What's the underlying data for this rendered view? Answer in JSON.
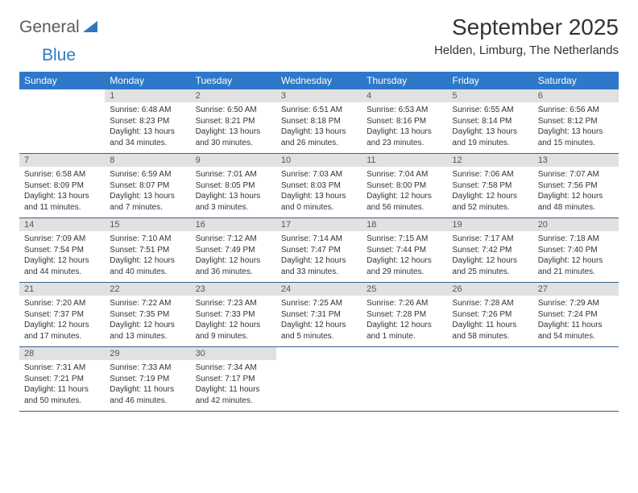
{
  "logo": {
    "text1": "General",
    "text2": "Blue"
  },
  "title": "September 2025",
  "location": "Helden, Limburg, The Netherlands",
  "colors": {
    "header_bg": "#2f78c9",
    "header_text": "#ffffff",
    "daynum_bg": "#e1e1e1",
    "daynum_text": "#565656",
    "body_text": "#333333",
    "rule": "#3a5f8a",
    "logo_gray": "#5a5a5a",
    "logo_blue": "#2f78bf"
  },
  "weekdays": [
    "Sunday",
    "Monday",
    "Tuesday",
    "Wednesday",
    "Thursday",
    "Friday",
    "Saturday"
  ],
  "weeks": [
    [
      null,
      {
        "n": "1",
        "sr": "Sunrise: 6:48 AM",
        "ss": "Sunset: 8:23 PM",
        "d1": "Daylight: 13 hours",
        "d2": "and 34 minutes."
      },
      {
        "n": "2",
        "sr": "Sunrise: 6:50 AM",
        "ss": "Sunset: 8:21 PM",
        "d1": "Daylight: 13 hours",
        "d2": "and 30 minutes."
      },
      {
        "n": "3",
        "sr": "Sunrise: 6:51 AM",
        "ss": "Sunset: 8:18 PM",
        "d1": "Daylight: 13 hours",
        "d2": "and 26 minutes."
      },
      {
        "n": "4",
        "sr": "Sunrise: 6:53 AM",
        "ss": "Sunset: 8:16 PM",
        "d1": "Daylight: 13 hours",
        "d2": "and 23 minutes."
      },
      {
        "n": "5",
        "sr": "Sunrise: 6:55 AM",
        "ss": "Sunset: 8:14 PM",
        "d1": "Daylight: 13 hours",
        "d2": "and 19 minutes."
      },
      {
        "n": "6",
        "sr": "Sunrise: 6:56 AM",
        "ss": "Sunset: 8:12 PM",
        "d1": "Daylight: 13 hours",
        "d2": "and 15 minutes."
      }
    ],
    [
      {
        "n": "7",
        "sr": "Sunrise: 6:58 AM",
        "ss": "Sunset: 8:09 PM",
        "d1": "Daylight: 13 hours",
        "d2": "and 11 minutes."
      },
      {
        "n": "8",
        "sr": "Sunrise: 6:59 AM",
        "ss": "Sunset: 8:07 PM",
        "d1": "Daylight: 13 hours",
        "d2": "and 7 minutes."
      },
      {
        "n": "9",
        "sr": "Sunrise: 7:01 AM",
        "ss": "Sunset: 8:05 PM",
        "d1": "Daylight: 13 hours",
        "d2": "and 3 minutes."
      },
      {
        "n": "10",
        "sr": "Sunrise: 7:03 AM",
        "ss": "Sunset: 8:03 PM",
        "d1": "Daylight: 13 hours",
        "d2": "and 0 minutes."
      },
      {
        "n": "11",
        "sr": "Sunrise: 7:04 AM",
        "ss": "Sunset: 8:00 PM",
        "d1": "Daylight: 12 hours",
        "d2": "and 56 minutes."
      },
      {
        "n": "12",
        "sr": "Sunrise: 7:06 AM",
        "ss": "Sunset: 7:58 PM",
        "d1": "Daylight: 12 hours",
        "d2": "and 52 minutes."
      },
      {
        "n": "13",
        "sr": "Sunrise: 7:07 AM",
        "ss": "Sunset: 7:56 PM",
        "d1": "Daylight: 12 hours",
        "d2": "and 48 minutes."
      }
    ],
    [
      {
        "n": "14",
        "sr": "Sunrise: 7:09 AM",
        "ss": "Sunset: 7:54 PM",
        "d1": "Daylight: 12 hours",
        "d2": "and 44 minutes."
      },
      {
        "n": "15",
        "sr": "Sunrise: 7:10 AM",
        "ss": "Sunset: 7:51 PM",
        "d1": "Daylight: 12 hours",
        "d2": "and 40 minutes."
      },
      {
        "n": "16",
        "sr": "Sunrise: 7:12 AM",
        "ss": "Sunset: 7:49 PM",
        "d1": "Daylight: 12 hours",
        "d2": "and 36 minutes."
      },
      {
        "n": "17",
        "sr": "Sunrise: 7:14 AM",
        "ss": "Sunset: 7:47 PM",
        "d1": "Daylight: 12 hours",
        "d2": "and 33 minutes."
      },
      {
        "n": "18",
        "sr": "Sunrise: 7:15 AM",
        "ss": "Sunset: 7:44 PM",
        "d1": "Daylight: 12 hours",
        "d2": "and 29 minutes."
      },
      {
        "n": "19",
        "sr": "Sunrise: 7:17 AM",
        "ss": "Sunset: 7:42 PM",
        "d1": "Daylight: 12 hours",
        "d2": "and 25 minutes."
      },
      {
        "n": "20",
        "sr": "Sunrise: 7:18 AM",
        "ss": "Sunset: 7:40 PM",
        "d1": "Daylight: 12 hours",
        "d2": "and 21 minutes."
      }
    ],
    [
      {
        "n": "21",
        "sr": "Sunrise: 7:20 AM",
        "ss": "Sunset: 7:37 PM",
        "d1": "Daylight: 12 hours",
        "d2": "and 17 minutes."
      },
      {
        "n": "22",
        "sr": "Sunrise: 7:22 AM",
        "ss": "Sunset: 7:35 PM",
        "d1": "Daylight: 12 hours",
        "d2": "and 13 minutes."
      },
      {
        "n": "23",
        "sr": "Sunrise: 7:23 AM",
        "ss": "Sunset: 7:33 PM",
        "d1": "Daylight: 12 hours",
        "d2": "and 9 minutes."
      },
      {
        "n": "24",
        "sr": "Sunrise: 7:25 AM",
        "ss": "Sunset: 7:31 PM",
        "d1": "Daylight: 12 hours",
        "d2": "and 5 minutes."
      },
      {
        "n": "25",
        "sr": "Sunrise: 7:26 AM",
        "ss": "Sunset: 7:28 PM",
        "d1": "Daylight: 12 hours",
        "d2": "and 1 minute."
      },
      {
        "n": "26",
        "sr": "Sunrise: 7:28 AM",
        "ss": "Sunset: 7:26 PM",
        "d1": "Daylight: 11 hours",
        "d2": "and 58 minutes."
      },
      {
        "n": "27",
        "sr": "Sunrise: 7:29 AM",
        "ss": "Sunset: 7:24 PM",
        "d1": "Daylight: 11 hours",
        "d2": "and 54 minutes."
      }
    ],
    [
      {
        "n": "28",
        "sr": "Sunrise: 7:31 AM",
        "ss": "Sunset: 7:21 PM",
        "d1": "Daylight: 11 hours",
        "d2": "and 50 minutes."
      },
      {
        "n": "29",
        "sr": "Sunrise: 7:33 AM",
        "ss": "Sunset: 7:19 PM",
        "d1": "Daylight: 11 hours",
        "d2": "and 46 minutes."
      },
      {
        "n": "30",
        "sr": "Sunrise: 7:34 AM",
        "ss": "Sunset: 7:17 PM",
        "d1": "Daylight: 11 hours",
        "d2": "and 42 minutes."
      },
      null,
      null,
      null,
      null
    ]
  ]
}
